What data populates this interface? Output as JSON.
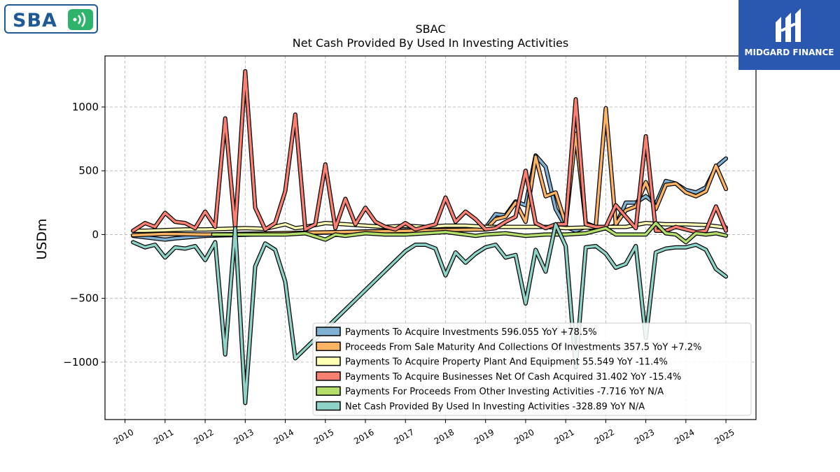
{
  "logos": {
    "sba": {
      "text": "SBA"
    },
    "midgard": {
      "text": "MIDGARD FINANCE"
    }
  },
  "chart_data": {
    "type": "line",
    "title": "SBAC",
    "subtitle": "Net Cash Provided By Used In Investing Activities",
    "xlabel": "",
    "ylabel": "USDm",
    "xlim": [
      2009.5,
      2025.75
    ],
    "ylim": [
      -1450,
      1400
    ],
    "yticks": [
      1000,
      500,
      0,
      -500,
      -1000
    ],
    "ytick_labels": [
      "1000",
      "500",
      "0",
      "−500",
      "−1000"
    ],
    "xticks": [
      2010,
      2011,
      2012,
      2013,
      2014,
      2015,
      2016,
      2017,
      2018,
      2019,
      2020,
      2021,
      2022,
      2023,
      2024,
      2025
    ],
    "xtick_labels": [
      "2010",
      "2011",
      "2012",
      "2013",
      "2014",
      "2015",
      "2016",
      "2017",
      "2018",
      "2019",
      "2020",
      "2021",
      "2022",
      "2023",
      "2024",
      "2025"
    ],
    "grid": true,
    "legend_position": "lower-right",
    "series": [
      {
        "name": "Payments To Acquire Investments",
        "legend_label": "Payments To Acquire Investments  596.055 YoY +78.5%",
        "color": "#80b1d3",
        "points": [
          [
            2010.2,
            -10
          ],
          [
            2011.0,
            -40
          ],
          [
            2011.25,
            -30
          ],
          [
            2012.0,
            -10
          ],
          [
            2019.0,
            50
          ],
          [
            2019.25,
            160
          ],
          [
            2019.5,
            150
          ],
          [
            2019.75,
            260
          ],
          [
            2020.0,
            230
          ],
          [
            2020.25,
            620
          ],
          [
            2020.5,
            530
          ],
          [
            2020.75,
            200
          ],
          [
            2021.0,
            60
          ],
          [
            2021.25,
            30
          ],
          [
            2021.5,
            60
          ],
          [
            2021.75,
            40
          ],
          [
            2022.0,
            50
          ],
          [
            2022.25,
            70
          ],
          [
            2022.5,
            250
          ],
          [
            2022.75,
            250
          ],
          [
            2023.0,
            300
          ],
          [
            2023.25,
            240
          ],
          [
            2023.5,
            420
          ],
          [
            2023.75,
            400
          ],
          [
            2024.0,
            350
          ],
          [
            2024.25,
            330
          ],
          [
            2024.5,
            370
          ],
          [
            2024.75,
            530
          ],
          [
            2025.0,
            596
          ]
        ]
      },
      {
        "name": "Proceeds From Sale Maturity And Collections Of Investments",
        "legend_label": "Proceeds From Sale Maturity And Collections Of Investments  357.5 YoY +7.2%",
        "color": "#fdb462",
        "points": [
          [
            2010.2,
            -5
          ],
          [
            2011.0,
            5
          ],
          [
            2012.0,
            0
          ],
          [
            2019.0,
            40
          ],
          [
            2019.25,
            120
          ],
          [
            2019.5,
            140
          ],
          [
            2019.75,
            250
          ],
          [
            2020.0,
            100
          ],
          [
            2020.25,
            610
          ],
          [
            2020.5,
            300
          ],
          [
            2020.75,
            330
          ],
          [
            2021.0,
            80
          ],
          [
            2021.25,
            790
          ],
          [
            2021.5,
            90
          ],
          [
            2021.75,
            60
          ],
          [
            2022.0,
            990
          ],
          [
            2022.25,
            80
          ],
          [
            2022.5,
            190
          ],
          [
            2022.75,
            220
          ],
          [
            2023.0,
            410
          ],
          [
            2023.25,
            200
          ],
          [
            2023.5,
            390
          ],
          [
            2023.75,
            400
          ],
          [
            2024.0,
            330
          ],
          [
            2024.25,
            300
          ],
          [
            2024.5,
            340
          ],
          [
            2024.75,
            540
          ],
          [
            2025.0,
            357
          ]
        ]
      },
      {
        "name": "Payments To Acquire Property Plant And Equipment",
        "legend_label": "Payments To Acquire Property Plant And Equipment  55.549 YoY -11.4%",
        "color": "#ffffb3",
        "points": [
          [
            2010.2,
            30
          ],
          [
            2010.5,
            30
          ],
          [
            2011.0,
            35
          ],
          [
            2011.5,
            40
          ],
          [
            2012.0,
            40
          ],
          [
            2012.5,
            45
          ],
          [
            2013.0,
            50
          ],
          [
            2013.5,
            45
          ],
          [
            2014.0,
            80
          ],
          [
            2014.25,
            50
          ],
          [
            2014.5,
            60
          ],
          [
            2015.0,
            90
          ],
          [
            2015.5,
            80
          ],
          [
            2016.0,
            70
          ],
          [
            2016.5,
            60
          ],
          [
            2017.0,
            70
          ],
          [
            2017.5,
            60
          ],
          [
            2018.0,
            70
          ],
          [
            2018.5,
            70
          ],
          [
            2019.0,
            60
          ],
          [
            2019.5,
            60
          ],
          [
            2020.0,
            60
          ],
          [
            2020.5,
            60
          ],
          [
            2021.0,
            50
          ],
          [
            2021.5,
            55
          ],
          [
            2022.0,
            60
          ],
          [
            2022.5,
            60
          ],
          [
            2023.0,
            90
          ],
          [
            2023.5,
            80
          ],
          [
            2024.0,
            80
          ],
          [
            2024.5,
            75
          ],
          [
            2025.0,
            55
          ]
        ]
      },
      {
        "name": "Payments To Acquire Businesses Net Of Cash Acquired",
        "legend_label": "Payments To Acquire Businesses Net Of Cash Acquired  31.402 YoY -15.4%",
        "color": "#fb8072",
        "points": [
          [
            2010.2,
            30
          ],
          [
            2010.5,
            90
          ],
          [
            2010.75,
            60
          ],
          [
            2011.0,
            170
          ],
          [
            2011.25,
            100
          ],
          [
            2011.5,
            90
          ],
          [
            2011.75,
            50
          ],
          [
            2012.0,
            180
          ],
          [
            2012.25,
            60
          ],
          [
            2012.5,
            910
          ],
          [
            2012.75,
            50
          ],
          [
            2013.0,
            1280
          ],
          [
            2013.25,
            210
          ],
          [
            2013.5,
            40
          ],
          [
            2013.75,
            90
          ],
          [
            2014.0,
            340
          ],
          [
            2014.25,
            940
          ],
          [
            2014.5,
            40
          ],
          [
            2014.75,
            80
          ],
          [
            2015.0,
            550
          ],
          [
            2015.25,
            50
          ],
          [
            2015.5,
            280
          ],
          [
            2015.75,
            80
          ],
          [
            2016.0,
            210
          ],
          [
            2016.25,
            100
          ],
          [
            2016.5,
            60
          ],
          [
            2016.75,
            40
          ],
          [
            2017.0,
            90
          ],
          [
            2017.25,
            40
          ],
          [
            2017.5,
            60
          ],
          [
            2017.75,
            80
          ],
          [
            2018.0,
            290
          ],
          [
            2018.25,
            100
          ],
          [
            2018.5,
            180
          ],
          [
            2018.75,
            120
          ],
          [
            2019.0,
            40
          ],
          [
            2019.25,
            50
          ],
          [
            2019.5,
            100
          ],
          [
            2019.75,
            140
          ],
          [
            2020.0,
            500
          ],
          [
            2020.25,
            90
          ],
          [
            2020.5,
            50
          ],
          [
            2020.75,
            80
          ],
          [
            2021.0,
            80
          ],
          [
            2021.25,
            1060
          ],
          [
            2021.5,
            80
          ],
          [
            2021.75,
            60
          ],
          [
            2022.0,
            60
          ],
          [
            2022.25,
            230
          ],
          [
            2022.5,
            140
          ],
          [
            2022.75,
            50
          ],
          [
            2023.0,
            770
          ],
          [
            2023.25,
            30
          ],
          [
            2023.5,
            30
          ],
          [
            2023.75,
            60
          ],
          [
            2024.0,
            40
          ],
          [
            2024.25,
            20
          ],
          [
            2024.5,
            30
          ],
          [
            2024.75,
            220
          ],
          [
            2025.0,
            31
          ]
        ]
      },
      {
        "name": "Payments For Proceeds From Other Investing Activities",
        "legend_label": "Payments For Proceeds From Other Investing Activities  -7.716 YoY N/A",
        "color": "#b3de69",
        "points": [
          [
            2012.2,
            0
          ],
          [
            2013.0,
            0
          ],
          [
            2014.0,
            0
          ],
          [
            2014.5,
            10
          ],
          [
            2015.0,
            -40
          ],
          [
            2015.25,
            0
          ],
          [
            2015.5,
            -10
          ],
          [
            2016.0,
            10
          ],
          [
            2016.5,
            0
          ],
          [
            2017.0,
            0
          ],
          [
            2017.5,
            10
          ],
          [
            2018.0,
            20
          ],
          [
            2018.5,
            0
          ],
          [
            2018.75,
            -10
          ],
          [
            2019.0,
            0
          ],
          [
            2019.5,
            10
          ],
          [
            2020.0,
            -10
          ],
          [
            2020.5,
            0
          ],
          [
            2021.0,
            0
          ],
          [
            2021.5,
            10
          ],
          [
            2022.0,
            50
          ],
          [
            2022.25,
            0
          ],
          [
            2022.75,
            0
          ],
          [
            2023.0,
            0
          ],
          [
            2023.25,
            90
          ],
          [
            2023.5,
            10
          ],
          [
            2023.75,
            0
          ],
          [
            2024.0,
            -60
          ],
          [
            2024.25,
            10
          ],
          [
            2024.5,
            0
          ],
          [
            2024.75,
            10
          ],
          [
            2025.0,
            -8
          ]
        ]
      },
      {
        "name": "Net Cash Provided By Used In Investing Activities",
        "legend_label": "Net Cash Provided By Used In Investing Activities  -328.89 YoY N/A",
        "color": "#8dd3c7",
        "points": [
          [
            2010.2,
            -60
          ],
          [
            2010.5,
            -100
          ],
          [
            2010.75,
            -80
          ],
          [
            2011.0,
            -180
          ],
          [
            2011.25,
            -100
          ],
          [
            2011.5,
            -110
          ],
          [
            2011.75,
            -90
          ],
          [
            2012.0,
            -200
          ],
          [
            2012.25,
            -60
          ],
          [
            2012.5,
            -940
          ],
          [
            2012.75,
            50
          ],
          [
            2013.0,
            -1320
          ],
          [
            2013.25,
            -250
          ],
          [
            2013.5,
            -70
          ],
          [
            2013.75,
            -120
          ],
          [
            2014.0,
            -370
          ],
          [
            2014.25,
            -970
          ],
          [
            2017.0,
            -130
          ],
          [
            2017.25,
            -80
          ],
          [
            2017.5,
            -80
          ],
          [
            2017.75,
            -110
          ],
          [
            2018.0,
            -320
          ],
          [
            2018.25,
            -140
          ],
          [
            2018.5,
            -220
          ],
          [
            2018.75,
            -150
          ],
          [
            2019.0,
            -100
          ],
          [
            2019.25,
            -80
          ],
          [
            2019.5,
            -180
          ],
          [
            2019.75,
            -160
          ],
          [
            2020.0,
            -540
          ],
          [
            2020.25,
            -120
          ],
          [
            2020.5,
            -290
          ],
          [
            2020.75,
            80
          ],
          [
            2021.0,
            -90
          ],
          [
            2021.25,
            -1040
          ],
          [
            2021.5,
            -100
          ],
          [
            2021.75,
            -90
          ],
          [
            2022.0,
            -150
          ],
          [
            2022.25,
            -260
          ],
          [
            2022.5,
            -230
          ],
          [
            2022.75,
            -90
          ],
          [
            2023.0,
            -810
          ],
          [
            2023.25,
            -140
          ],
          [
            2023.5,
            -110
          ],
          [
            2023.75,
            -100
          ],
          [
            2024.0,
            -100
          ],
          [
            2024.25,
            -80
          ],
          [
            2024.5,
            -120
          ],
          [
            2024.75,
            -270
          ],
          [
            2025.0,
            -329
          ]
        ]
      }
    ]
  }
}
